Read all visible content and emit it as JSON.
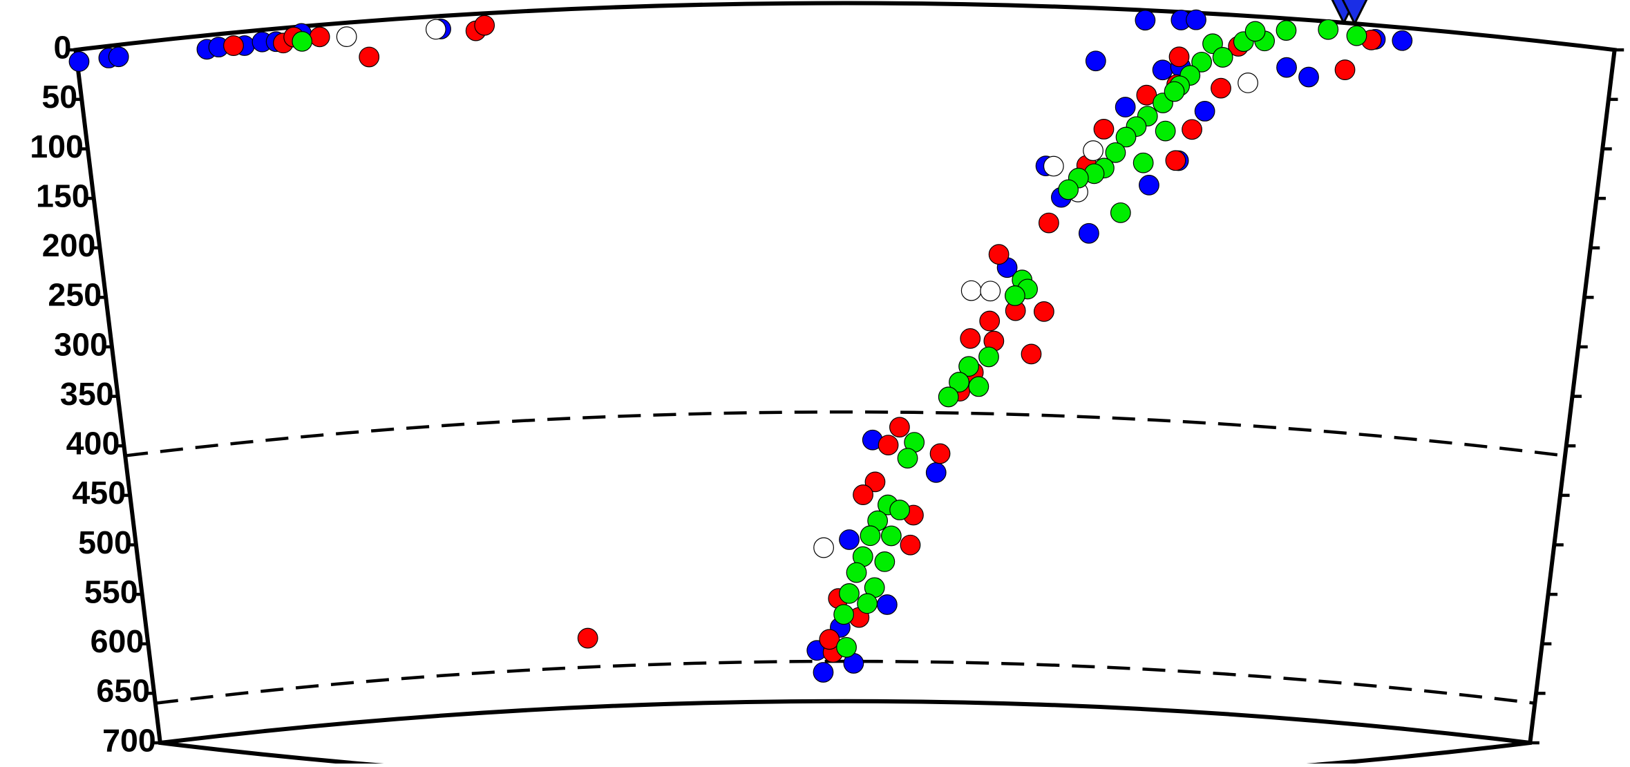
{
  "chart_data": {
    "type": "scatter",
    "xlim": [
      0,
      1547
    ],
    "ylim": [
      0,
      700
    ],
    "yticks": [
      0,
      50,
      100,
      150,
      200,
      250,
      300,
      350,
      400,
      450,
      500,
      550,
      600,
      650,
      700
    ],
    "reference_depths": [
      410,
      660
    ],
    "stations": [
      1274,
      1285
    ],
    "series": [
      {
        "color": "#0000ff",
        "x": [
          2,
          32,
          42,
          131,
          143,
          169,
          187,
          201,
          227,
          367,
          1075,
          1111,
          1126,
          1307,
          1334,
          1220,
          1243,
          1095,
          1059,
          1113,
          1140,
          1116,
          1087,
          980,
          997,
          1027,
          943,
          803,
          872,
          778,
          742,
          749,
          783,
          820,
          768,
          1027
        ],
        "values": [
          12,
          12,
          12,
          14,
          13,
          14,
          12,
          13,
          7,
          13,
          10,
          8,
          7,
          14,
          13,
          49,
          57,
          59,
          98,
          55,
          98,
          149,
          175,
          160,
          191,
          226,
          263,
          438,
          470,
          538,
          649,
          671,
          662,
          603,
          626,
          53
        ]
      },
      {
        "color": "#ff0000",
        "x": [
          158,
          208,
          219,
          245,
          293,
          402,
          411,
          1279,
          1303,
          1111,
          1110,
          1080,
          1128,
          1038,
          1022,
          985,
          934,
          953,
          971,
          983,
          926,
          906,
          896,
          876,
          820,
          832,
          806,
          793,
          848,
          845,
          766,
          760,
          756,
          789,
          487,
          910,
          931,
          1113,
          1155,
          1170
        ],
        "values": [
          13,
          15,
          10,
          12,
          36,
          17,
          12,
          47,
          15,
          45,
          73,
          85,
          117,
          121,
          158,
          217,
          250,
          306,
          349,
          306,
          317,
          335,
          388,
          451,
          443,
          425,
          480,
          493,
          513,
          543,
          597,
          651,
          638,
          616,
          631,
          369,
          337,
          149,
          74,
          31
        ]
      },
      {
        "color": "#ffffff",
        "x": [
          272,
          362,
          1182,
          988,
          1028,
          1014,
          906,
          926,
          750
        ],
        "values": [
          14,
          13,
          67,
          160,
          143,
          185,
          287,
          287,
          546
        ]
      },
      {
        "color": "#00ee00",
        "x": [
          227,
          1288,
          1259,
          1217,
          1196,
          1175,
          1144,
          1134,
          1123,
          1113,
          1097,
          1082,
          1071,
          1061,
          1051,
          1040,
          1030,
          1014,
          1004,
          1059,
          1080,
          1101,
          1108,
          1155,
          1186,
          959,
          965,
          952,
          926,
          905,
          895,
          884,
          916,
          848,
          841,
          820,
          809,
          801,
          793,
          786,
          778,
          772,
          775,
          824,
          817,
          806,
          833,
          798
        ],
        "values": [
          15,
          12,
          8,
          12,
          24,
          26,
          30,
          49,
          63,
          74,
          92,
          106,
          117,
          128,
          144,
          160,
          166,
          171,
          183,
          204,
          153,
          120,
          80,
          43,
          15,
          275,
          284,
          291,
          353,
          363,
          379,
          394,
          383,
          440,
          456,
          503,
          519,
          534,
          555,
          571,
          592,
          613,
          646,
          534,
          560,
          586,
          508,
          602
        ]
      }
    ]
  }
}
